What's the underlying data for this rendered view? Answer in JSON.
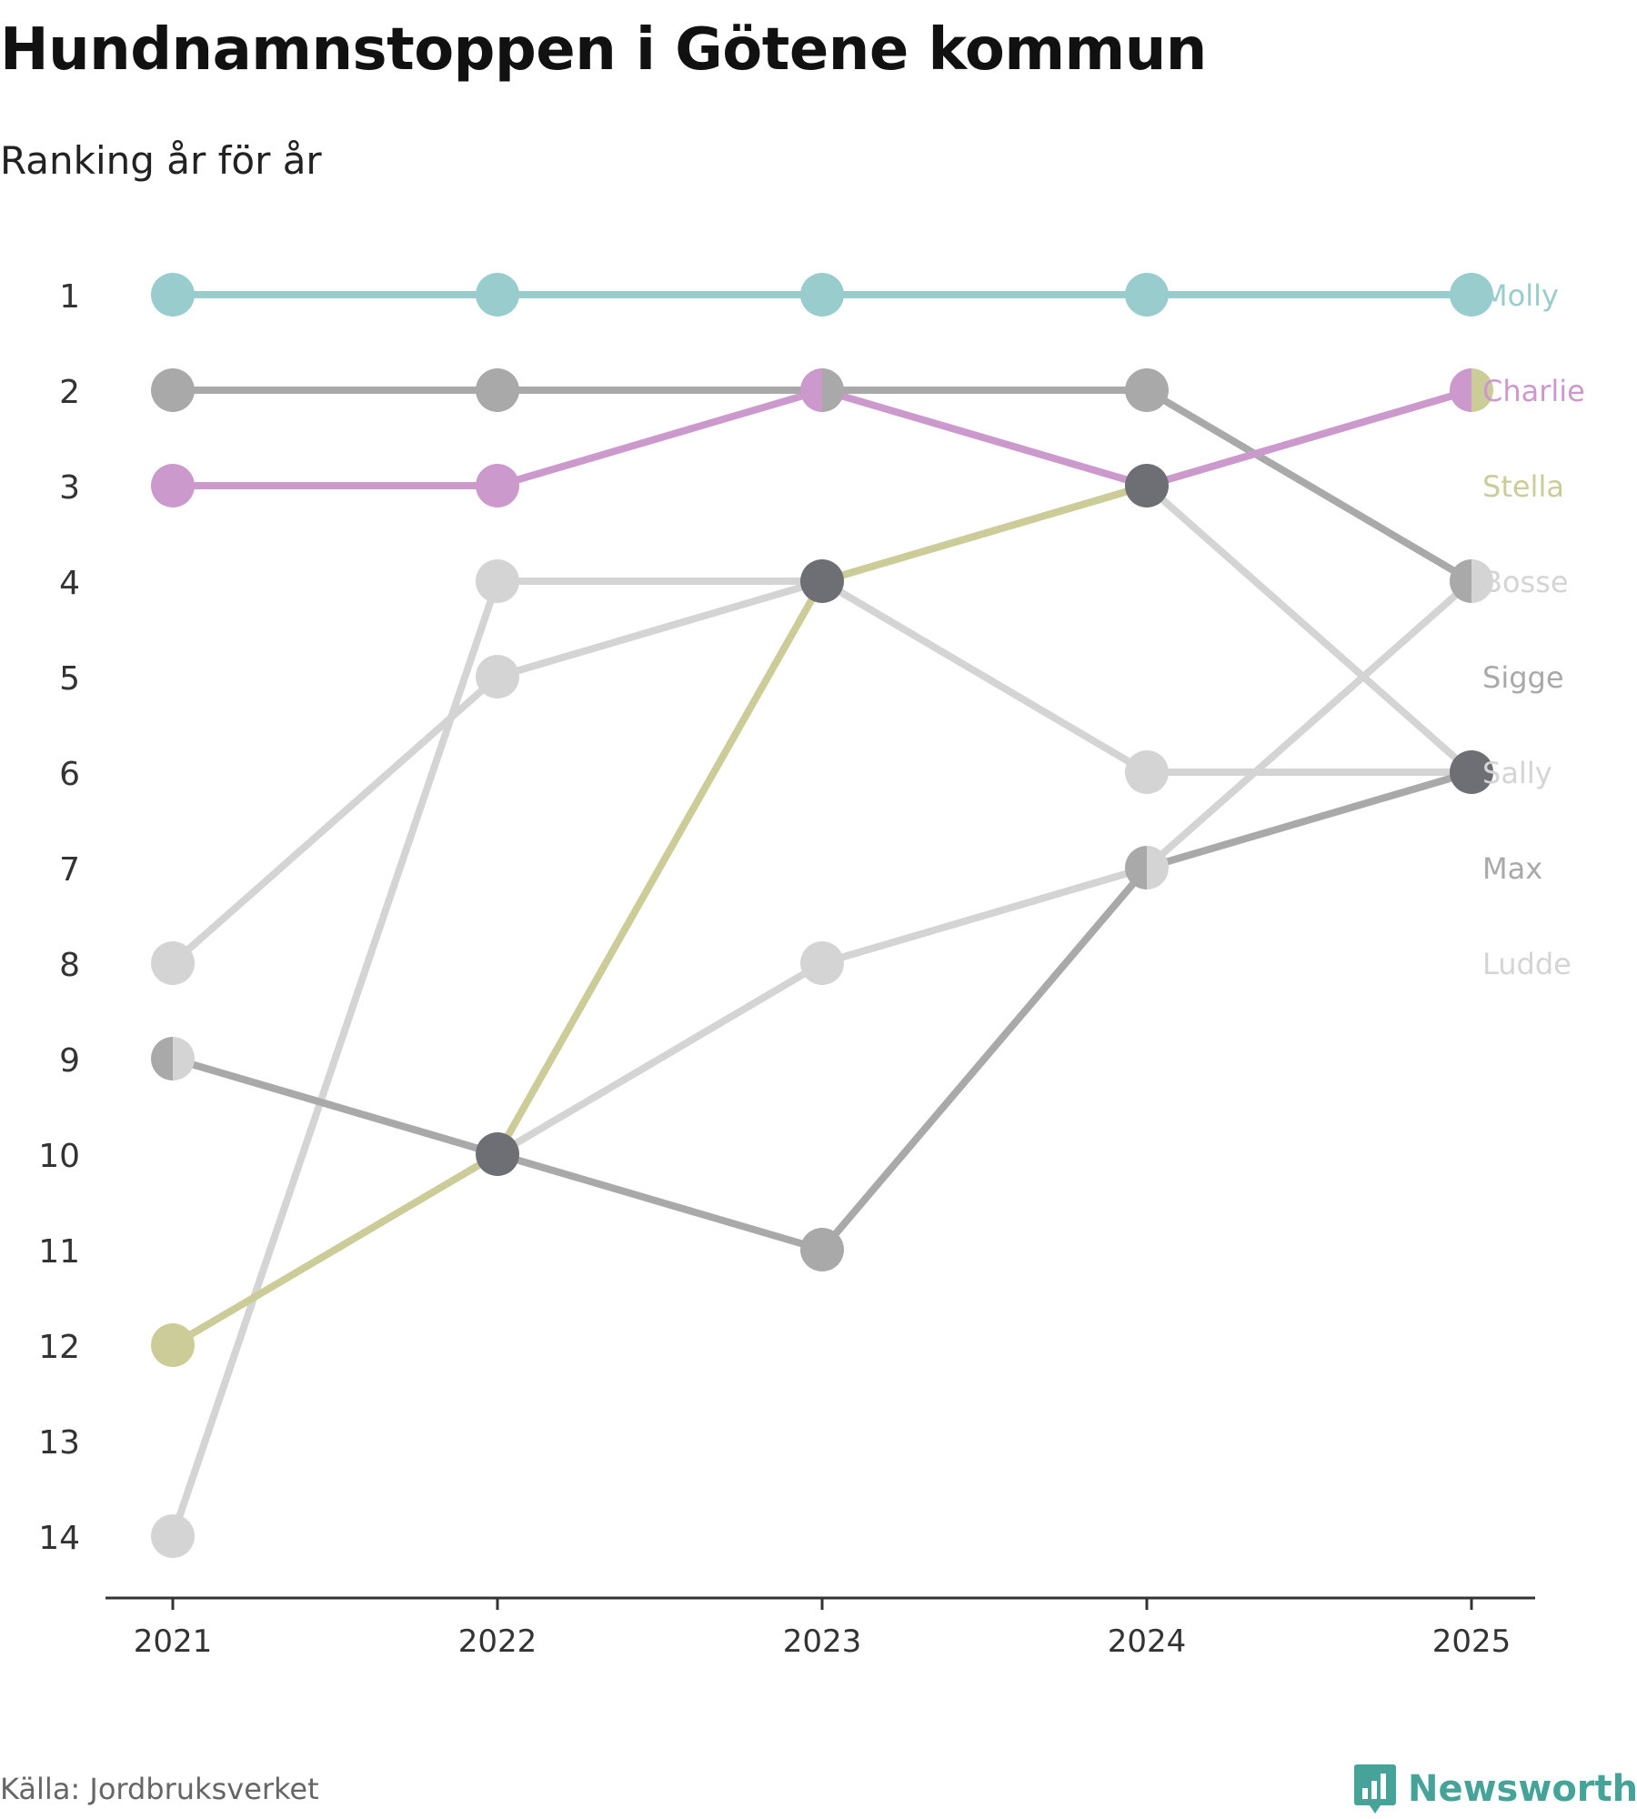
{
  "header": {
    "title": "Hundnamnstoppen i Götene kommun",
    "subtitle": "Ranking år för år"
  },
  "footer": {
    "source": "Källa: Jordbruksverket",
    "brand": "Newsworthy",
    "brand_icon": "bar-chart-speech-bubble-icon",
    "brand_color": "#46a39a"
  },
  "chart_data": {
    "type": "line",
    "subtype": "bump",
    "x": [
      "2021",
      "2022",
      "2023",
      "2024",
      "2025"
    ],
    "y_ticks": [
      "1",
      "2",
      "3",
      "4",
      "5",
      "6",
      "7",
      "8",
      "9",
      "10",
      "11",
      "12",
      "13",
      "14"
    ],
    "ylim": [
      1,
      14
    ],
    "y_reversed": true,
    "grid": false,
    "legend": "labels at right end of lines",
    "series": [
      {
        "name": "Ludde",
        "color": "#d4d4d4",
        "values": [
          14,
          4,
          4,
          6,
          6
        ]
      },
      {
        "name": "Max",
        "color": "#d4d4d4",
        "values": [
          9,
          10,
          8,
          7,
          4
        ]
      },
      {
        "name": "Sally",
        "color": "#d4d4d4",
        "values": [
          8,
          5,
          4,
          3,
          6
        ]
      },
      {
        "name": "Sigge",
        "color": "#a9a9a9",
        "values": [
          9,
          10,
          11,
          7,
          6
        ]
      },
      {
        "name": "Bosse",
        "color": "#a9a9a9",
        "values": [
          2,
          2,
          2,
          2,
          4
        ]
      },
      {
        "name": "Stella",
        "color": "#cccc99",
        "values": [
          12,
          10,
          4,
          3,
          2
        ]
      },
      {
        "name": "Charlie",
        "color": "#cc99cc",
        "values": [
          3,
          3,
          2,
          3,
          2
        ]
      },
      {
        "name": "Molly",
        "color": "#99cccc",
        "values": [
          1,
          1,
          1,
          1,
          1
        ]
      }
    ],
    "labels": [
      {
        "name": "Molly",
        "rank": 1,
        "color": "#99cccc"
      },
      {
        "name": "Charlie",
        "rank": 2,
        "color": "#cc99cc"
      },
      {
        "name": "Stella",
        "rank": 3,
        "color": "#cccc99"
      },
      {
        "name": "Bosse",
        "rank": 4,
        "color": "#d4d4d4"
      },
      {
        "name": "Sigge",
        "rank": 5,
        "color": "#a9a9a9"
      },
      {
        "name": "Sally",
        "rank": 6,
        "color": "#d4d4d4"
      },
      {
        "name": "Max",
        "rank": 7,
        "color": "#a9a9a9"
      },
      {
        "name": "Ludde",
        "rank": 8,
        "color": "#d4d4d4"
      }
    ],
    "overlap_color": "#6e6e75"
  }
}
